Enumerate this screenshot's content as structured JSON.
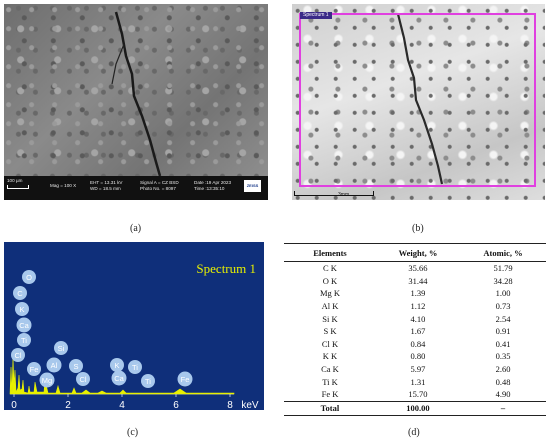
{
  "panel_a": {
    "caption": "(a)",
    "scale_label": "100 µm",
    "mag": "Mag = 100 X",
    "eht": "EHT = 13.31 kV",
    "wd": "WD = 18.5 mm",
    "signal": "Signal A = CZ BSD",
    "photo": "Photo No. = 8097",
    "date": "Date :19 Apr 2023",
    "time": "Time :13:35:10",
    "logo": "ZEISS"
  },
  "panel_b": {
    "caption": "(b)",
    "spectrum_label": "Spectrum 1",
    "scale_label": "3mm",
    "rect_color": "#e040e0"
  },
  "panel_c": {
    "caption": "(c)",
    "spectrum_title": "Spectrum 1",
    "background_color": "#0f2f7a",
    "peak_color": "#e8f000",
    "label_color": "#a8c8ec",
    "x_unit": "keV",
    "x_ticks": [
      "0",
      "2",
      "4",
      "6",
      "8"
    ],
    "peak_labels": [
      "O",
      "C",
      "K",
      "Ca",
      "Ti",
      "Cl",
      "Fe",
      "Mg",
      "Al",
      "Si",
      "S",
      "Cl",
      "K",
      "Ca",
      "Ti",
      "Ti",
      "Fe"
    ]
  },
  "panel_d": {
    "caption": "(d)",
    "headers": [
      "Elements",
      "Weight, %",
      "Atomic, %"
    ],
    "rows": [
      [
        "C K",
        "35.66",
        "51.79"
      ],
      [
        "O K",
        "31.44",
        "34.28"
      ],
      [
        "Mg K",
        "1.39",
        "1.00"
      ],
      [
        "Al K",
        "1.12",
        "0.73"
      ],
      [
        "Si K",
        "4.10",
        "2.54"
      ],
      [
        "S K",
        "1.67",
        "0.91"
      ],
      [
        "Cl K",
        "0.84",
        "0.41"
      ],
      [
        "K K",
        "0.80",
        "0.35"
      ],
      [
        "Ca K",
        "5.97",
        "2.60"
      ],
      [
        "Ti K",
        "1.31",
        "0.48"
      ],
      [
        "Fe K",
        "15.70",
        "4.90"
      ]
    ],
    "total": [
      "Total",
      "100.00",
      "–"
    ]
  }
}
